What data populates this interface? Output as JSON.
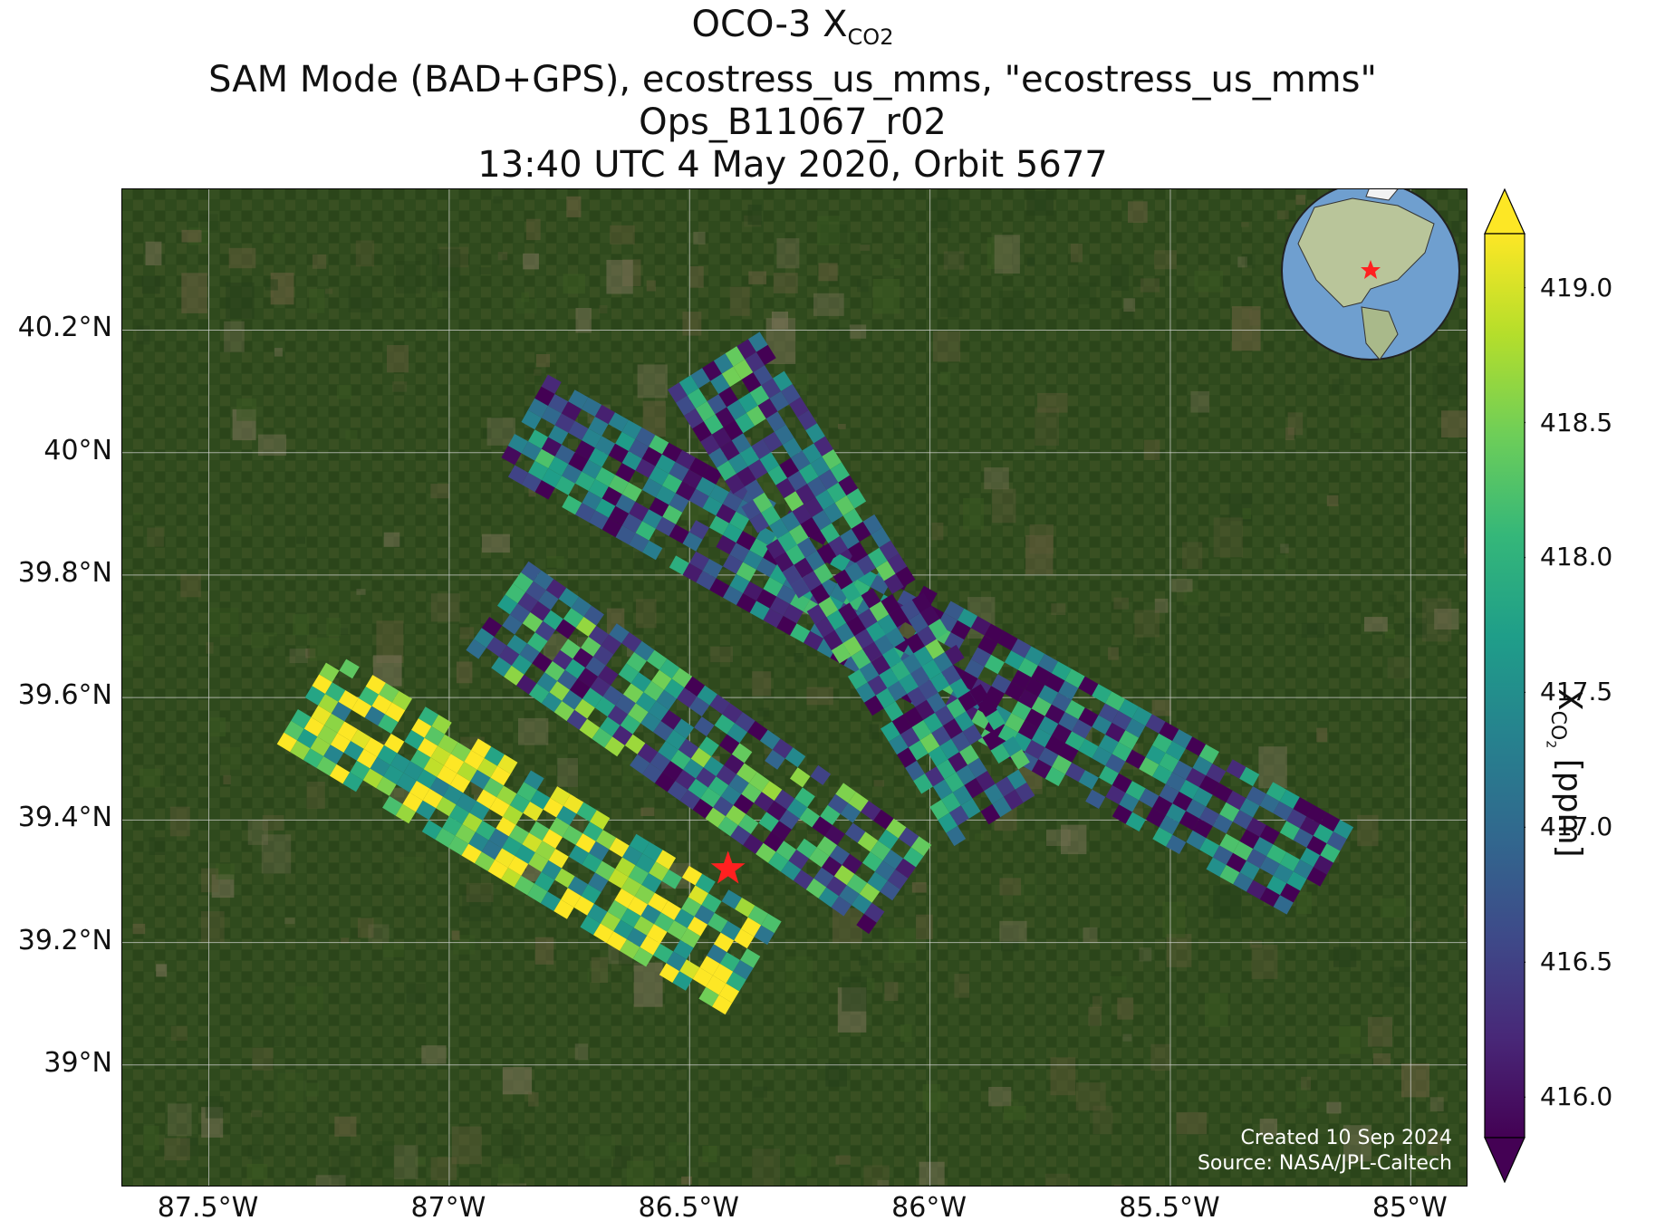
{
  "title": {
    "line1_prefix": "OCO-3 X",
    "line1_sub": "CO2",
    "line2": "SAM Mode (BAD+GPS), ecostress_us_mms, \"ecostress_us_mms\"",
    "line3": "Ops_B11067_r02",
    "line4": "13:40 UTC 4 May 2020, Orbit 5677"
  },
  "map": {
    "lon_range": [
      -87.68,
      -84.88
    ],
    "lat_range": [
      38.8,
      40.43
    ],
    "lat_ticks": [
      {
        "value": 40.2,
        "label": "40.2°N"
      },
      {
        "value": 40.0,
        "label": "40°N"
      },
      {
        "value": 39.8,
        "label": "39.8°N"
      },
      {
        "value": 39.6,
        "label": "39.6°N"
      },
      {
        "value": 39.4,
        "label": "39.4°N"
      },
      {
        "value": 39.2,
        "label": "39.2°N"
      },
      {
        "value": 39.0,
        "label": "39°N"
      }
    ],
    "lon_ticks": [
      {
        "value": -87.5,
        "label": "87.5°W"
      },
      {
        "value": -87.0,
        "label": "87°W"
      },
      {
        "value": -86.5,
        "label": "86.5°W"
      },
      {
        "value": -86.0,
        "label": "86°W"
      },
      {
        "value": -85.5,
        "label": "85.5°W"
      },
      {
        "value": -85.0,
        "label": "85°W"
      }
    ],
    "target_marker": {
      "lon": -86.42,
      "lat": 39.32,
      "color": "#ff2020"
    },
    "basemap_color": "#2f4a1d",
    "credit_line1": "Created 10 Sep 2024",
    "credit_line2": "Source: NASA/JPL-Caltech"
  },
  "colorbar": {
    "title_prefix": "X",
    "title_sub": "CO",
    "title_subsub": "2",
    "title_suffix": " [ppm]",
    "vmin": 415.85,
    "vmax": 419.2,
    "colormap": "viridis",
    "extend": "both",
    "ticks": [
      "416.0",
      "416.5",
      "417.0",
      "417.5",
      "418.0",
      "418.5",
      "419.0"
    ]
  },
  "chart_data": {
    "type": "heatmap",
    "variable": "XCO2 [ppm]",
    "swaths": [
      {
        "lon_start": -86.85,
        "lat_start": 40.05,
        "lon_end": -85.15,
        "lat_end": 39.3,
        "mean_xco2": 416.8
      },
      {
        "lon_start": -86.45,
        "lat_start": 40.15,
        "lon_end": -85.85,
        "lat_end": 39.4,
        "mean_xco2": 417.0
      },
      {
        "lon_start": -87.3,
        "lat_start": 39.6,
        "lon_end": -86.35,
        "lat_end": 39.15,
        "mean_xco2": 418.6
      },
      {
        "lon_start": -86.9,
        "lat_start": 39.75,
        "lon_end": -86.05,
        "lat_end": 39.28,
        "mean_xco2": 417.2
      }
    ]
  }
}
